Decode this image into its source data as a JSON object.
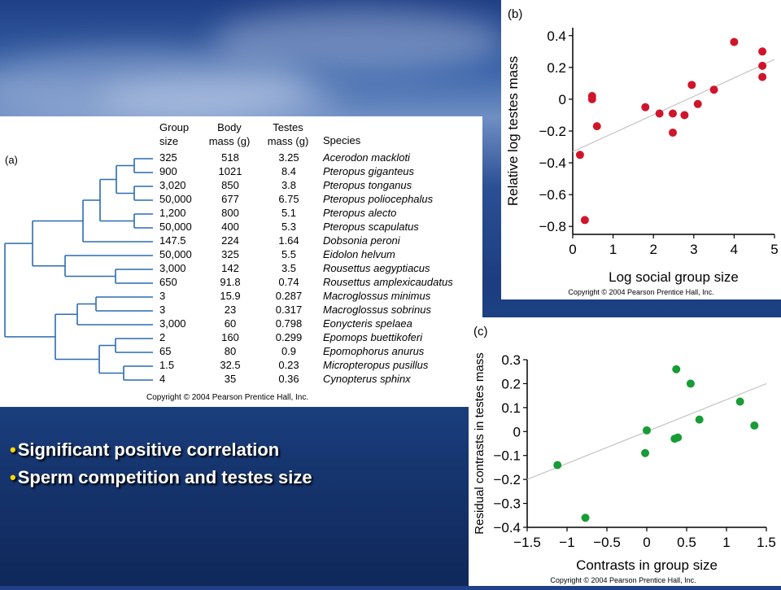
{
  "slide": {
    "bullets": [
      "Significant positive correlation",
      "Sperm competition and testes size"
    ]
  },
  "panel_a": {
    "label": "(a)",
    "headers": {
      "group_size": [
        "Group",
        "size"
      ],
      "body_mass": [
        "Body",
        "mass (g)"
      ],
      "testes_mass": [
        "Testes",
        "mass (g)"
      ],
      "species": "Species"
    },
    "rows": [
      {
        "group": "325",
        "body": "518",
        "testes": "3.25",
        "species": "Acerodon mackloti"
      },
      {
        "group": "900",
        "body": "1021",
        "testes": "8.4",
        "species": "Pteropus giganteus"
      },
      {
        "group": "3,020",
        "body": "850",
        "testes": "3.8",
        "species": "Pteropus tonganus"
      },
      {
        "group": "50,000",
        "body": "677",
        "testes": "6.75",
        "species": "Pteropus poliocephalus"
      },
      {
        "group": "1,200",
        "body": "800",
        "testes": "5.1",
        "species": "Pteropus alecto"
      },
      {
        "group": "50,000",
        "body": "400",
        "testes": "5.3",
        "species": "Pteropus scapulatus"
      },
      {
        "group": "147.5",
        "body": "224",
        "testes": "1.64",
        "species": "Dobsonia peroni"
      },
      {
        "group": "50,000",
        "body": "325",
        "testes": "5.5",
        "species": "Eidolon helvum"
      },
      {
        "group": "3,000",
        "body": "142",
        "testes": "3.5",
        "species": "Rousettus aegyptiacus"
      },
      {
        "group": "650",
        "body": "91.8",
        "testes": "0.74",
        "species": "Rousettus amplexicaudatus"
      },
      {
        "group": "3",
        "body": "15.9",
        "testes": "0.287",
        "species": "Macroglossus minimus"
      },
      {
        "group": "3",
        "body": "23",
        "testes": "0.317",
        "species": "Macroglossus sobrinus"
      },
      {
        "group": "3,000",
        "body": "60",
        "testes": "0.798",
        "species": "Eonycteris spelaea"
      },
      {
        "group": "2",
        "body": "160",
        "testes": "0.299",
        "species": "Epomops buettikoferi"
      },
      {
        "group": "65",
        "body": "80",
        "testes": "0.9",
        "species": "Epomophorus anurus"
      },
      {
        "group": "1.5",
        "body": "32.5",
        "testes": "0.23",
        "species": "Micropteropus pusillus"
      },
      {
        "group": "4",
        "body": "35",
        "testes": "0.36",
        "species": "Cynopterus sphinx"
      }
    ],
    "copyright": "Copyright © 2004 Pearson Prentice Hall, Inc.",
    "tree_color": "#2a6cb0"
  },
  "chart_data": [
    {
      "id": "b",
      "type": "scatter",
      "panel_label": "(b)",
      "xlabel": "Log social group size",
      "ylabel": "Relative log testes mass",
      "xlim": [
        0,
        5
      ],
      "ylim": [
        -0.85,
        0.45
      ],
      "xticks": [
        "0",
        "1",
        "2",
        "3",
        "4",
        "5"
      ],
      "yticks": [
        "0.4",
        "0.2",
        "0",
        "−0.2",
        "−0.4",
        "−0.6",
        "−0.8"
      ],
      "ytick_values": [
        0.4,
        0.2,
        0,
        -0.2,
        -0.4,
        -0.6,
        -0.8
      ],
      "xtick_values": [
        0,
        1,
        2,
        3,
        4,
        5
      ],
      "point_color": "#d0152b",
      "trend": {
        "x": [
          0,
          5
        ],
        "y": [
          -0.33,
          0.25
        ]
      },
      "points": [
        {
          "x": 0.18,
          "y": -0.35
        },
        {
          "x": 0.3,
          "y": -0.76
        },
        {
          "x": 0.48,
          "y": 0.0
        },
        {
          "x": 0.48,
          "y": 0.02
        },
        {
          "x": 0.6,
          "y": -0.17
        },
        {
          "x": 1.8,
          "y": -0.05
        },
        {
          "x": 2.15,
          "y": -0.09
        },
        {
          "x": 2.48,
          "y": -0.09
        },
        {
          "x": 2.48,
          "y": -0.21
        },
        {
          "x": 2.77,
          "y": -0.1
        },
        {
          "x": 2.95,
          "y": 0.09
        },
        {
          "x": 3.1,
          "y": -0.03
        },
        {
          "x": 3.5,
          "y": 0.06
        },
        {
          "x": 4.0,
          "y": 0.36
        },
        {
          "x": 4.7,
          "y": 0.3
        },
        {
          "x": 4.7,
          "y": 0.21
        },
        {
          "x": 4.7,
          "y": 0.14
        }
      ],
      "copyright": "Copyright © 2004 Pearson Prentice Hall, Inc."
    },
    {
      "id": "c",
      "type": "scatter",
      "panel_label": "(c)",
      "xlabel": "Contrasts in group size",
      "ylabel": "Residual contrasts in testes mass",
      "xlim": [
        -1.5,
        1.5
      ],
      "ylim": [
        -0.4,
        0.3
      ],
      "xticks": [
        "−1.5",
        "−1",
        "−0.5",
        "0",
        "0.5",
        "1",
        "1.5"
      ],
      "xtick_values": [
        -1.5,
        -1,
        -0.5,
        0,
        0.5,
        1,
        1.5
      ],
      "yticks": [
        "0.3",
        "0.2",
        "0.1",
        "0",
        "−0.1",
        "−0.2",
        "−0.3",
        "−0.4"
      ],
      "ytick_values": [
        0.3,
        0.2,
        0.1,
        0,
        -0.1,
        -0.2,
        -0.3,
        -0.4
      ],
      "point_color": "#179c36",
      "trend": {
        "x": [
          -1.5,
          1.5
        ],
        "y": [
          -0.2,
          0.2
        ]
      },
      "points": [
        {
          "x": -1.12,
          "y": -0.14
        },
        {
          "x": -0.77,
          "y": -0.36
        },
        {
          "x": -0.02,
          "y": -0.09
        },
        {
          "x": 0.0,
          "y": 0.005
        },
        {
          "x": 0.35,
          "y": -0.03
        },
        {
          "x": 0.39,
          "y": -0.025
        },
        {
          "x": 0.37,
          "y": 0.26
        },
        {
          "x": 0.55,
          "y": 0.2
        },
        {
          "x": 0.66,
          "y": 0.05
        },
        {
          "x": 1.17,
          "y": 0.125
        },
        {
          "x": 1.35,
          "y": 0.025
        }
      ],
      "copyright": "Copyright © 2004 Pearson Prentice Hall, Inc."
    }
  ]
}
